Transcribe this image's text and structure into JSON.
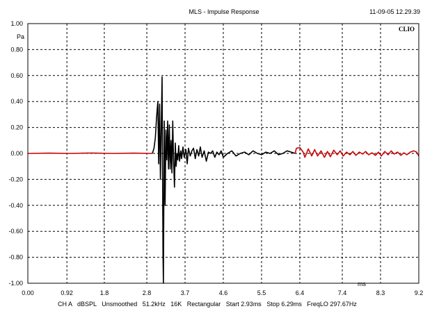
{
  "chart_data": {
    "type": "line",
    "title": "MLS - Impulse Response",
    "timestamp": "11-09-05 12.29.39",
    "logo": "CLIO",
    "ylabel": "Pa",
    "xlabel": "ms",
    "xlim": [
      0,
      9.2
    ],
    "ylim": [
      -1.0,
      1.0
    ],
    "grid": true,
    "x_ticks": [
      0,
      0.92,
      1.8,
      2.8,
      3.7,
      4.6,
      5.5,
      6.4,
      7.4,
      8.3,
      9.2
    ],
    "x_tick_labels": [
      "0.00",
      "0.92",
      "1.8",
      "2.8",
      "3.7",
      "4.6",
      "5.5",
      "6.4",
      "7.4",
      "8.3",
      "9.2"
    ],
    "y_ticks": [
      1.0,
      0.8,
      0.6,
      0.4,
      0.2,
      0.0,
      -0.2,
      -0.4,
      -0.6,
      -0.8,
      -1.0
    ],
    "y_tick_labels": [
      "1.00",
      "0.80",
      "0.60",
      "0.40",
      "0.20",
      "0.00",
      "-0.20",
      "-0.40",
      "-0.60",
      "-0.80",
      "-1.00"
    ],
    "footer": "CH A   dBSPL   Unsmoothed   51.2kHz   16K   Rectangular   Start 2.93ms   Stop 6.29ms   FreqLO 297.67Hz",
    "series": [
      {
        "color": "#cc0000",
        "x": [
          0,
          0.5,
          1.0,
          1.5,
          2.0,
          2.5,
          2.93
        ],
        "y": [
          0.0,
          0.002,
          0.0,
          0.003,
          0.0,
          0.002,
          0.0
        ]
      },
      {
        "color": "#000000",
        "x": [
          2.93,
          2.97,
          3.0,
          3.03,
          3.06,
          3.08,
          3.1,
          3.12,
          3.14,
          3.16,
          3.18,
          3.19,
          3.21,
          3.23,
          3.25,
          3.27,
          3.29,
          3.31,
          3.33,
          3.35,
          3.37,
          3.39,
          3.41,
          3.43,
          3.45,
          3.47,
          3.49,
          3.51,
          3.53,
          3.55,
          3.57,
          3.6,
          3.62,
          3.65,
          3.68,
          3.72,
          3.75,
          3.78,
          3.82,
          3.86,
          3.9,
          3.94,
          3.98,
          4.02,
          4.06,
          4.1,
          4.15,
          4.2,
          4.25,
          4.3,
          4.35,
          4.4,
          4.45,
          4.5,
          4.55,
          4.6,
          4.7,
          4.8,
          4.9,
          5.0,
          5.1,
          5.2,
          5.3,
          5.4,
          5.5,
          5.6,
          5.7,
          5.8,
          5.9,
          6.0,
          6.1,
          6.2,
          6.29
        ],
        "y": [
          0.0,
          0.04,
          0.12,
          0.28,
          0.4,
          -0.08,
          0.38,
          -0.2,
          0.2,
          0.59,
          -0.78,
          -1.0,
          0.25,
          -0.4,
          0.18,
          -0.05,
          0.25,
          -0.12,
          0.22,
          -0.12,
          0.1,
          -0.15,
          0.25,
          -0.05,
          -0.26,
          0.08,
          -0.1,
          0.0,
          -0.05,
          0.06,
          -0.06,
          0.02,
          -0.04,
          0.05,
          -0.03,
          0.03,
          -0.08,
          0.04,
          -0.02,
          0.02,
          0.04,
          -0.04,
          0.03,
          -0.02,
          0.05,
          -0.03,
          0.02,
          -0.06,
          0.01,
          0.0,
          0.02,
          -0.03,
          0.01,
          -0.01,
          0.02,
          -0.03,
          0.0,
          0.02,
          -0.02,
          0.0,
          0.01,
          -0.01,
          0.02,
          0.0,
          -0.01,
          0.01,
          0.0,
          0.02,
          -0.01,
          0.0,
          0.02,
          0.01,
          0.0
        ]
      },
      {
        "color": "#cc0000",
        "x": [
          6.29,
          6.32,
          6.4,
          6.48,
          6.52,
          6.6,
          6.68,
          6.75,
          6.82,
          6.9,
          6.98,
          7.05,
          7.12,
          7.2,
          7.28,
          7.35,
          7.42,
          7.5,
          7.58,
          7.65,
          7.72,
          7.8,
          7.88,
          7.95,
          8.02,
          8.1,
          8.18,
          8.25,
          8.32,
          8.4,
          8.48,
          8.55,
          8.62,
          8.7,
          8.78,
          8.85,
          8.92,
          9.0,
          9.08,
          9.15,
          9.2
        ],
        "y": [
          0.0,
          0.04,
          0.045,
          0.01,
          -0.03,
          0.035,
          -0.02,
          0.03,
          -0.02,
          0.02,
          -0.03,
          0.015,
          -0.025,
          0.025,
          -0.01,
          0.02,
          -0.02,
          0.01,
          -0.01,
          0.015,
          -0.015,
          0.01,
          -0.005,
          0.015,
          -0.01,
          0.005,
          -0.015,
          0.01,
          -0.02,
          0.015,
          -0.01,
          0.02,
          -0.005,
          0.01,
          -0.015,
          0.005,
          -0.01,
          0.01,
          0.02,
          0.01,
          -0.02
        ]
      }
    ]
  }
}
